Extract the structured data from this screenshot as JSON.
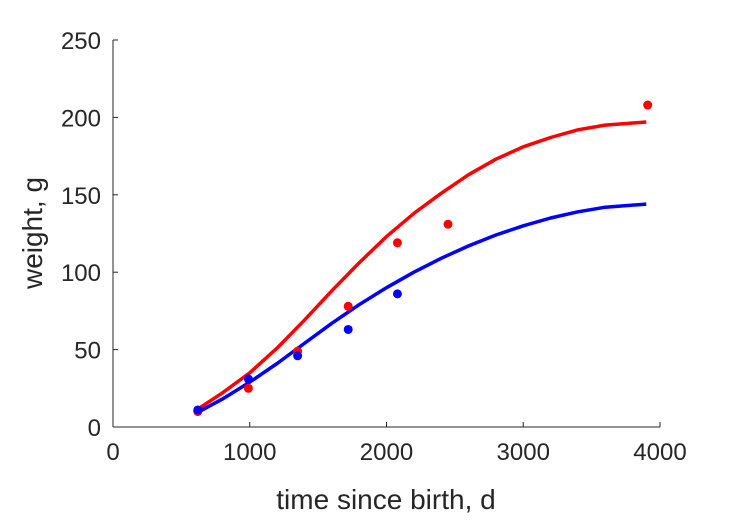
{
  "chart_data": {
    "type": "scatter",
    "xlabel": "time since birth, d",
    "ylabel": "weight, g",
    "xlim": [
      0,
      4000
    ],
    "ylim": [
      0,
      250
    ],
    "xticks": [
      "0",
      "1000",
      "2000",
      "3000",
      "4000"
    ],
    "yticks": [
      "0",
      "50",
      "100",
      "150",
      "200",
      "250"
    ],
    "grid": false,
    "series": [
      {
        "color": "#ff0000",
        "points": [
          [
            620,
            10
          ],
          [
            990,
            25
          ],
          [
            1350,
            49
          ],
          [
            1720,
            78
          ],
          [
            2080,
            119
          ],
          [
            2450,
            131
          ],
          [
            3910,
            208
          ]
        ],
        "curve": [
          [
            610,
            11
          ],
          [
            800,
            22
          ],
          [
            1000,
            35
          ],
          [
            1200,
            51
          ],
          [
            1400,
            69
          ],
          [
            1600,
            88
          ],
          [
            1800,
            106
          ],
          [
            2000,
            123
          ],
          [
            2200,
            138
          ],
          [
            2400,
            151
          ],
          [
            2600,
            163
          ],
          [
            2800,
            173
          ],
          [
            3000,
            181
          ],
          [
            3200,
            187
          ],
          [
            3400,
            192
          ],
          [
            3600,
            195
          ],
          [
            3900,
            197
          ]
        ]
      },
      {
        "color": "#0000ff",
        "points": [
          [
            620,
            11
          ],
          [
            990,
            31
          ],
          [
            1350,
            46
          ],
          [
            1720,
            63
          ],
          [
            2080,
            86
          ]
        ],
        "curve": [
          [
            610,
            9
          ],
          [
            800,
            18
          ],
          [
            1000,
            29
          ],
          [
            1200,
            41
          ],
          [
            1400,
            54
          ],
          [
            1600,
            67
          ],
          [
            1800,
            79
          ],
          [
            2000,
            90
          ],
          [
            2200,
            100
          ],
          [
            2400,
            109
          ],
          [
            2600,
            117
          ],
          [
            2800,
            124
          ],
          [
            3000,
            130
          ],
          [
            3200,
            135
          ],
          [
            3400,
            139
          ],
          [
            3600,
            142
          ],
          [
            3900,
            144
          ]
        ]
      }
    ]
  }
}
